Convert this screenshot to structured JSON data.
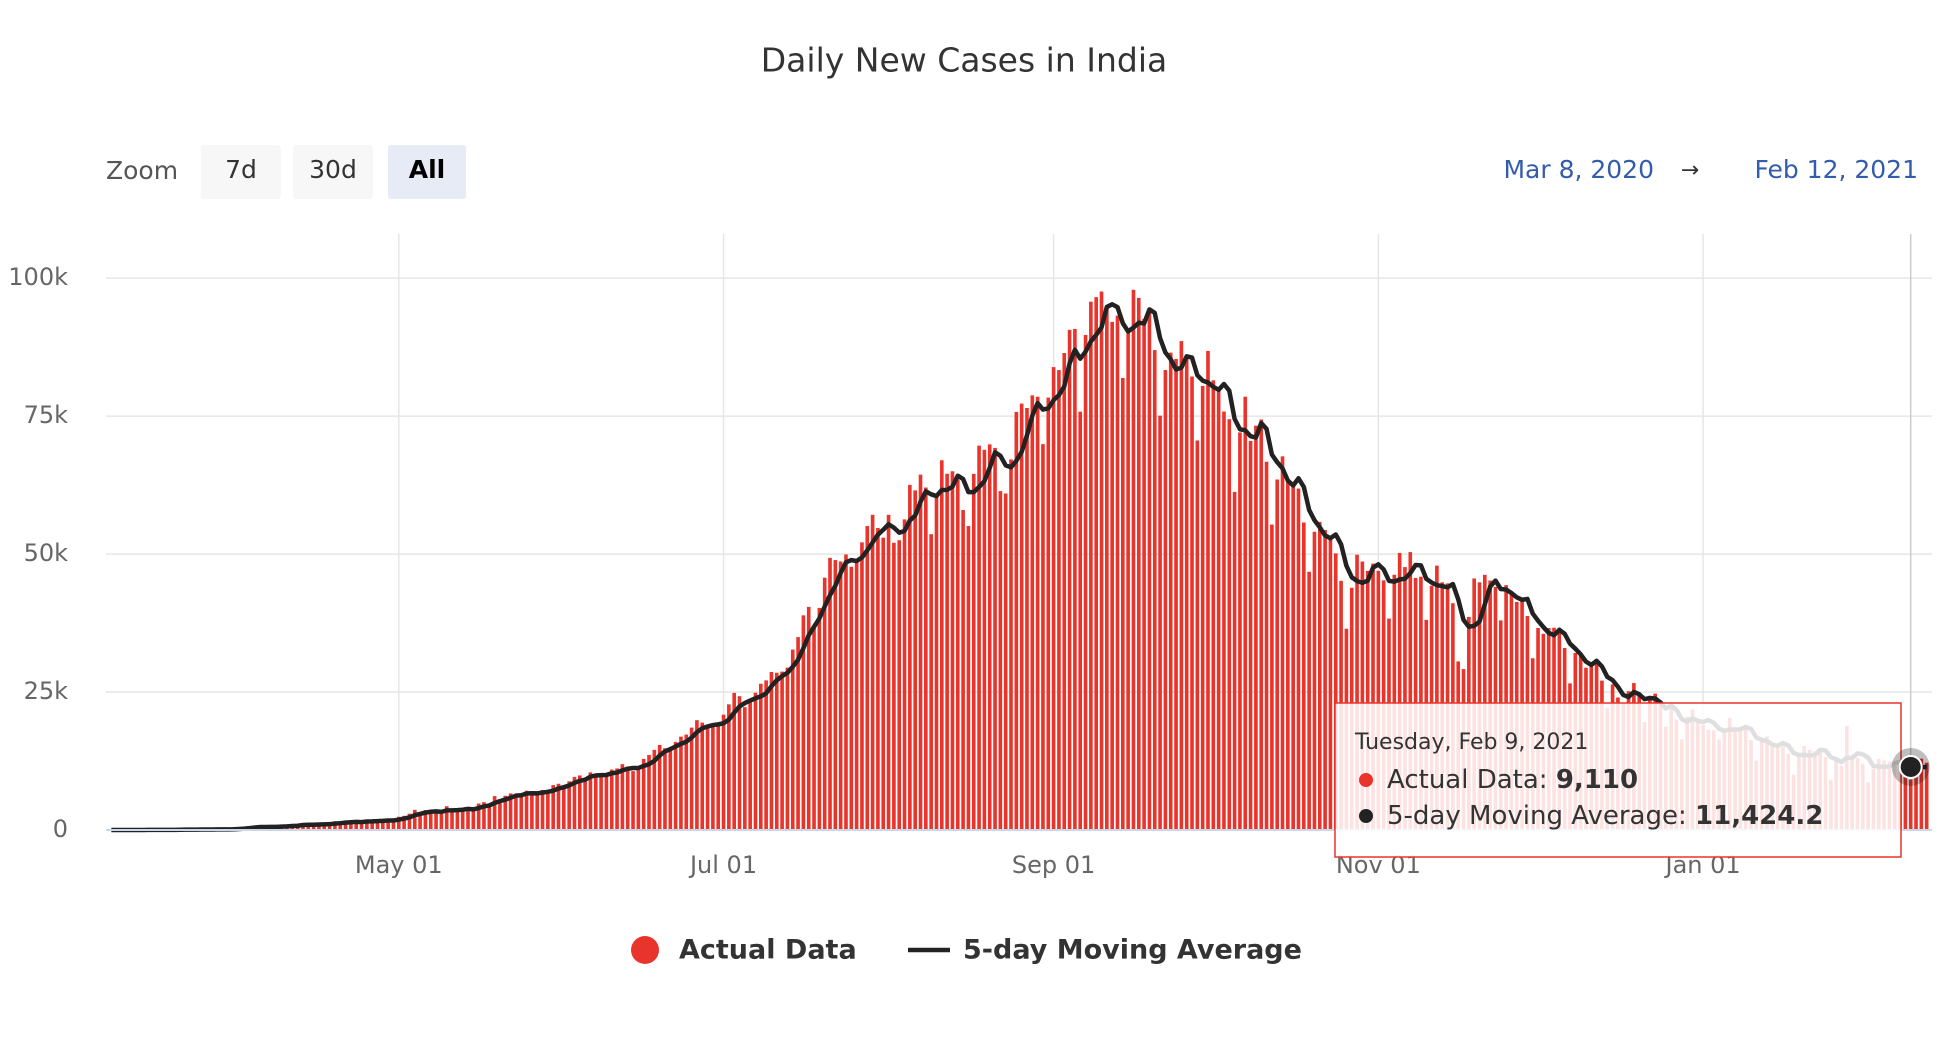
{
  "chart_data": {
    "type": "bar",
    "title": "Daily New Cases in India",
    "zoom": {
      "label": "Zoom",
      "buttons": [
        "7d",
        "30d",
        "All"
      ],
      "selected": "All"
    },
    "range": {
      "from": "Mar 8, 2020",
      "separator": "→",
      "to": "Feb 12, 2021"
    },
    "grid": true,
    "xlim": [
      "2020-03-07",
      "2021-02-13"
    ],
    "xticks": [
      {
        "value": "2020-05-01",
        "label": "May 01"
      },
      {
        "value": "2020-07-01",
        "label": "Jul 01"
      },
      {
        "value": "2020-09-01",
        "label": "Sep 01"
      },
      {
        "value": "2020-11-01",
        "label": "Nov 01"
      },
      {
        "value": "2021-01-01",
        "label": "Jan 01"
      }
    ],
    "ylim": [
      0,
      108000
    ],
    "yticks": [
      0,
      {
        "value": 25000,
        "label": "25k"
      },
      {
        "value": 50000,
        "label": "50k"
      },
      {
        "value": 75000,
        "label": "75k"
      },
      {
        "value": 100000,
        "label": "100k"
      }
    ],
    "x": [
      "2020-03-08",
      "2020-03-09",
      "2020-03-10",
      "2020-03-11",
      "2020-03-12",
      "2020-03-13",
      "2020-03-14",
      "2020-03-15",
      "2020-03-16",
      "2020-03-17",
      "2020-03-18",
      "2020-03-19",
      "2020-03-20",
      "2020-03-21",
      "2020-03-22",
      "2020-03-23",
      "2020-03-24",
      "2020-03-25",
      "2020-03-26",
      "2020-03-27",
      "2020-03-28",
      "2020-03-29",
      "2020-03-30",
      "2020-03-31",
      "2020-04-01",
      "2020-04-02",
      "2020-04-03",
      "2020-04-04",
      "2020-04-05",
      "2020-04-06",
      "2020-04-07",
      "2020-04-08",
      "2020-04-09",
      "2020-04-10",
      "2020-04-11",
      "2020-04-12",
      "2020-04-13",
      "2020-04-14",
      "2020-04-15",
      "2020-04-16",
      "2020-04-17",
      "2020-04-18",
      "2020-04-19",
      "2020-04-20",
      "2020-04-21",
      "2020-04-22",
      "2020-04-23",
      "2020-04-24",
      "2020-04-25",
      "2020-04-26",
      "2020-04-27",
      "2020-04-28",
      "2020-04-29",
      "2020-04-30",
      "2020-05-01",
      "2020-05-02",
      "2020-05-03",
      "2020-05-04",
      "2020-05-05",
      "2020-05-06",
      "2020-05-07",
      "2020-05-08",
      "2020-05-09",
      "2020-05-10",
      "2020-05-11",
      "2020-05-12",
      "2020-05-13",
      "2020-05-14",
      "2020-05-15",
      "2020-05-16",
      "2020-05-17",
      "2020-05-18",
      "2020-05-19",
      "2020-05-20",
      "2020-05-21",
      "2020-05-22",
      "2020-05-23",
      "2020-05-24",
      "2020-05-25",
      "2020-05-26",
      "2020-05-27",
      "2020-05-28",
      "2020-05-29",
      "2020-05-30",
      "2020-05-31",
      "2020-06-01",
      "2020-06-02",
      "2020-06-03",
      "2020-06-04",
      "2020-06-05",
      "2020-06-06",
      "2020-06-07",
      "2020-06-08",
      "2020-06-09",
      "2020-06-10",
      "2020-06-11",
      "2020-06-12",
      "2020-06-13",
      "2020-06-14",
      "2020-06-15",
      "2020-06-16",
      "2020-06-17",
      "2020-06-18",
      "2020-06-19",
      "2020-06-20",
      "2020-06-21",
      "2020-06-22",
      "2020-06-23",
      "2020-06-24",
      "2020-06-25",
      "2020-06-26",
      "2020-06-27",
      "2020-06-28",
      "2020-06-29",
      "2020-06-30",
      "2020-07-01",
      "2020-07-02",
      "2020-07-03",
      "2020-07-04",
      "2020-07-05",
      "2020-07-06",
      "2020-07-07",
      "2020-07-08",
      "2020-07-09",
      "2020-07-10",
      "2020-07-11",
      "2020-07-12",
      "2020-07-13",
      "2020-07-14",
      "2020-07-15",
      "2020-07-16",
      "2020-07-17",
      "2020-07-18",
      "2020-07-19",
      "2020-07-20",
      "2020-07-21",
      "2020-07-22",
      "2020-07-23",
      "2020-07-24",
      "2020-07-25",
      "2020-07-26",
      "2020-07-27",
      "2020-07-28",
      "2020-07-29",
      "2020-07-30",
      "2020-07-31",
      "2020-08-01",
      "2020-08-02",
      "2020-08-03",
      "2020-08-04",
      "2020-08-05",
      "2020-08-06",
      "2020-08-07",
      "2020-08-08",
      "2020-08-09",
      "2020-08-10",
      "2020-08-11",
      "2020-08-12",
      "2020-08-13",
      "2020-08-14",
      "2020-08-15",
      "2020-08-16",
      "2020-08-17",
      "2020-08-18",
      "2020-08-19",
      "2020-08-20",
      "2020-08-21",
      "2020-08-22",
      "2020-08-23",
      "2020-08-24",
      "2020-08-25",
      "2020-08-26",
      "2020-08-27",
      "2020-08-28",
      "2020-08-29",
      "2020-08-30",
      "2020-08-31",
      "2020-09-01",
      "2020-09-02",
      "2020-09-03",
      "2020-09-04",
      "2020-09-05",
      "2020-09-06",
      "2020-09-07",
      "2020-09-08",
      "2020-09-09",
      "2020-09-10",
      "2020-09-11",
      "2020-09-12",
      "2020-09-13",
      "2020-09-14",
      "2020-09-15",
      "2020-09-16",
      "2020-09-17",
      "2020-09-18",
      "2020-09-19",
      "2020-09-20",
      "2020-09-21",
      "2020-09-22",
      "2020-09-23",
      "2020-09-24",
      "2020-09-25",
      "2020-09-26",
      "2020-09-27",
      "2020-09-28",
      "2020-09-29",
      "2020-09-30",
      "2020-10-01",
      "2020-10-02",
      "2020-10-03",
      "2020-10-04",
      "2020-10-05",
      "2020-10-06",
      "2020-10-07",
      "2020-10-08",
      "2020-10-09",
      "2020-10-10",
      "2020-10-11",
      "2020-10-12",
      "2020-10-13",
      "2020-10-14",
      "2020-10-15",
      "2020-10-16",
      "2020-10-17",
      "2020-10-18",
      "2020-10-19",
      "2020-10-20",
      "2020-10-21",
      "2020-10-22",
      "2020-10-23",
      "2020-10-24",
      "2020-10-25",
      "2020-10-26",
      "2020-10-27",
      "2020-10-28",
      "2020-10-29",
      "2020-10-30",
      "2020-10-31",
      "2020-11-01",
      "2020-11-02",
      "2020-11-03",
      "2020-11-04",
      "2020-11-05",
      "2020-11-06",
      "2020-11-07",
      "2020-11-08",
      "2020-11-09",
      "2020-11-10",
      "2020-11-11",
      "2020-11-12",
      "2020-11-13",
      "2020-11-14",
      "2020-11-15",
      "2020-11-16",
      "2020-11-17",
      "2020-11-18",
      "2020-11-19",
      "2020-11-20",
      "2020-11-21",
      "2020-11-22",
      "2020-11-23",
      "2020-11-24",
      "2020-11-25",
      "2020-11-26",
      "2020-11-27",
      "2020-11-28",
      "2020-11-29",
      "2020-11-30",
      "2020-12-01",
      "2020-12-02",
      "2020-12-03",
      "2020-12-04",
      "2020-12-05",
      "2020-12-06",
      "2020-12-07",
      "2020-12-08",
      "2020-12-09",
      "2020-12-10",
      "2020-12-11",
      "2020-12-12",
      "2020-12-13",
      "2020-12-14",
      "2020-12-15",
      "2020-12-16",
      "2020-12-17",
      "2020-12-18",
      "2020-12-19",
      "2020-12-20",
      "2020-12-21",
      "2020-12-22",
      "2020-12-23",
      "2020-12-24",
      "2020-12-25",
      "2020-12-26",
      "2020-12-27",
      "2020-12-28",
      "2020-12-29",
      "2020-12-30",
      "2020-12-31",
      "2021-01-01",
      "2021-01-02",
      "2021-01-03",
      "2021-01-04",
      "2021-01-05",
      "2021-01-06",
      "2021-01-07",
      "2021-01-08",
      "2021-01-09",
      "2021-01-10",
      "2021-01-11",
      "2021-01-12",
      "2021-01-13",
      "2021-01-14",
      "2021-01-15",
      "2021-01-16",
      "2021-01-17",
      "2021-01-18",
      "2021-01-19",
      "2021-01-20",
      "2021-01-21",
      "2021-01-22",
      "2021-01-23",
      "2021-01-24",
      "2021-01-25",
      "2021-01-26",
      "2021-01-27",
      "2021-01-28",
      "2021-01-29",
      "2021-01-30",
      "2021-01-31",
      "2021-02-01",
      "2021-02-02",
      "2021-02-03",
      "2021-02-04",
      "2021-02-05",
      "2021-02-06",
      "2021-02-07",
      "2021-02-08",
      "2021-02-09",
      "2021-02-10",
      "2021-02-11",
      "2021-02-12"
    ],
    "series": [
      {
        "name": "Actual Data",
        "type": "bar",
        "color": "#e8342b",
        "values": [
          3,
          4,
          6,
          10,
          13,
          11,
          12,
          14,
          18,
          12,
          25,
          40,
          59,
          69,
          103,
          63,
          86,
          74,
          88,
          149,
          156,
          92,
          97,
          170,
          437,
          486,
          560,
          579,
          609,
          484,
          573,
          565,
          813,
          871,
          854,
          758,
          1243,
          1031,
          886,
          1061,
          922,
          1370,
          1580,
          1239,
          1537,
          1292,
          1667,
          1408,
          1835,
          1607,
          1568,
          1902,
          1705,
          1801,
          2396,
          2564,
          2952,
          3656,
          2971,
          3602,
          3344,
          3339,
          3175,
          4311,
          3592,
          3562,
          3726,
          3991,
          3808,
          4794,
          5049,
          4628,
          6147,
          5553,
          6198,
          6629,
          6570,
          6535,
          7113,
          6414,
          6566,
          7246,
          7254,
          8138,
          8380,
          7761,
          8821,
          9633,
          9889,
          9471,
          10438,
          9983,
          9987,
          9985,
          10956,
          11156,
          11929,
          11502,
          10667,
          10974,
          12881,
          13586,
          14516,
          15413,
          14821,
          14933,
          15968,
          16922,
          17296,
          18552,
          19906,
          19459,
          18522,
          18653,
          19148,
          20903,
          22771,
          24850,
          24248,
          22252,
          23135,
          24879,
          26506,
          27114,
          28637,
          28498,
          28701,
          29429,
          32695,
          34956,
          38902,
          40425,
          37148,
          40243,
          45720,
          49310,
          48916,
          48661,
          49931,
          47704,
          48513,
          52123,
          55078,
          57118,
          54735,
          52972,
          57117,
          52050,
          52509,
          56282,
          62538,
          61537,
          64399,
          62064,
          53601,
          60963,
          66999,
          64553,
          65002,
          63490,
          57981,
          55079,
          64531,
          69652,
          68898,
          69878,
          69239,
          61408,
          60975,
          67151,
          75760,
          77266,
          76472,
          78761,
          78512,
          69921,
          78357,
          83883,
          83341,
          86432,
          90632,
          90802,
          75809,
          89706,
          95735,
          96551,
          97570,
          94372,
          92071,
          93215,
          81911,
          90123,
          97894,
          96424,
          92605,
          94612,
          86961,
          75083,
          83347,
          86508,
          85362,
          88600,
          85362,
          82170,
          70589,
          80472,
          86821,
          81484,
          79476,
          75829,
          74442,
          61267,
          72049,
          78524,
          70496,
          73272,
          74383,
          66732,
          55342,
          63509,
          67708,
          63371,
          62212,
          61871,
          55722,
          46791,
          54044,
          55839,
          54366,
          53370,
          50129,
          45149,
          36469,
          43893,
          49881,
          48648,
          46963,
          48268,
          46964,
          45231,
          38310,
          46253,
          50210,
          47638,
          50356,
          45674,
          45903,
          38073,
          44281,
          47905,
          44879,
          44684,
          41100,
          30548,
          29163,
          38617,
          45576,
          44882,
          46232,
          45209,
          44059,
          37975,
          44376,
          43082,
          41322,
          41810,
          38772,
          31118,
          36604,
          35551,
          36595,
          36652,
          36011,
          32981,
          26567,
          32080,
          31522,
          29398,
          30006,
          30254,
          27071,
          22065,
          26382,
          24010,
          22890,
          25152,
          26624,
          24337,
          19556,
          23950,
          24712,
          23067,
          18732,
          22273,
          20021,
          16432,
          20550,
          21822,
          20035,
          19078,
          18177,
          18088,
          16375,
          18088,
          20346,
          18139,
          18222,
          18645,
          16311,
          12584,
          15968,
          16946,
          15590,
          15158,
          15144,
          13788,
          10064,
          13823,
          15223,
          14545,
          14256,
          14849,
          13203,
          9102,
          12689,
          11666,
          18855,
          13083,
          13052,
          12000,
          8635,
          11039,
          12899,
          12600,
          12408,
          11713,
          12059,
          11831,
          9110,
          11067,
          12923,
          12194
        ]
      },
      {
        "name": "5-day Moving Average",
        "type": "line",
        "color": "#222222",
        "values": [
          3,
          4,
          4,
          6,
          7,
          9,
          10,
          12,
          14,
          13,
          16,
          22,
          31,
          41,
          59,
          67,
          76,
          79,
          83,
          92,
          110,
          112,
          116,
          131,
          190,
          256,
          350,
          446,
          534,
          544,
          561,
          562,
          609,
          661,
          735,
          772,
          908,
          951,
          954,
          996,
          1029,
          1054,
          1164,
          1234,
          1330,
          1404,
          1463,
          1429,
          1548,
          1562,
          1617,
          1664,
          1723,
          1717,
          1874,
          2074,
          2284,
          2674,
          2908,
          3149,
          3305,
          3382,
          3286,
          3554,
          3552,
          3596,
          3673,
          3836,
          3736,
          3976,
          4274,
          4454,
          4885,
          5234,
          5515,
          5831,
          6219,
          6297,
          6609,
          6652,
          6640,
          6775,
          6919,
          7124,
          7517,
          7756,
          8071,
          8547,
          8897,
          9115,
          9650,
          9883,
          9954,
          9973,
          10270,
          10413,
          10803,
          11106,
          11242,
          11246,
          11591,
          11922,
          12525,
          13474,
          14243,
          14654,
          15130,
          15611,
          15988,
          16734,
          17729,
          18427,
          18747,
          19018,
          19138,
          19337,
          19999,
          21265,
          22384,
          23005,
          23451,
          23873,
          24204,
          24777,
          26054,
          27127,
          27891,
          28476,
          29592,
          30856,
          32937,
          35281,
          36825,
          38335,
          40488,
          42569,
          44267,
          46570,
          48508,
          48904,
          48745,
          49386,
          50670,
          52107,
          53513,
          54405,
          55404,
          54798,
          53877,
          54186,
          56099,
          56983,
          59453,
          61364,
          60828,
          60513,
          61605,
          61636,
          62224,
          64201,
          63605,
          61221,
          61217,
          62147,
          63228,
          65608,
          68440,
          67815,
          66080,
          65730,
          66907,
          68512,
          71525,
          75082,
          77354,
          76186,
          76405,
          77887,
          78803,
          80387,
          84529,
          87018,
          85403,
          86676,
          88537,
          89721,
          91074,
          94787,
          95260,
          94756,
          91828,
          90338,
          91043,
          91913,
          91791,
          94332,
          93699,
          89137,
          86522,
          85302,
          83452,
          83780,
          85836,
          85600,
          82417,
          81439,
          81083,
          80307,
          79768,
          80816,
          79610,
          74500,
          72613,
          72422,
          71356,
          71122,
          73745,
          72681,
          68045,
          66648,
          65535,
          63332,
          62428,
          63734,
          62177,
          57993,
          56128,
          54853,
          53352,
          52882,
          53550,
          51771,
          47897,
          45802,
          45104,
          44808,
          45171,
          47531,
          48145,
          47215,
          45147,
          45005,
          45394,
          45528,
          46553,
          48026,
          47956,
          45529,
          44857,
          44367,
          44208,
          43964,
          44570,
          41823,
          38075,
          36822,
          37001,
          37757,
          40894,
          44103,
          45192,
          43671,
          43570,
          42940,
          42163,
          41713,
          41872,
          39221,
          37925,
          36771,
          35728,
          35304,
          36283,
          35558,
          33761,
          32858,
          31832,
          30510,
          29915,
          30652,
          29650,
          27759,
          27156,
          25956,
          24484,
          24100,
          25012,
          24603,
          23712,
          23924,
          23836,
          23124,
          22003,
          22547,
          21761,
          20105,
          19602,
          20220,
          19772,
          19583,
          19932,
          19440,
          18351,
          17961,
          18215,
          18207,
          18234,
          18688,
          18333,
          16780,
          16346,
          16091,
          15480,
          15249,
          15761,
          15325,
          13949,
          13595,
          13608,
          13489,
          13582,
          14539,
          14415,
          13191,
          12820,
          12302,
          13103,
          13079,
          13869,
          13731,
          13125,
          11562,
          11525,
          11435,
          11516,
          12132,
          12336,
          12122,
          11424.2,
          11156,
          11398,
          11425
        ]
      }
    ],
    "tooltip": {
      "title": "Tuesday, Feb 9, 2021",
      "items": [
        {
          "label": "Actual Data:",
          "value": "9,110"
        },
        {
          "label": "5-day Moving Average:",
          "value": "11,424.2"
        }
      ]
    }
  }
}
